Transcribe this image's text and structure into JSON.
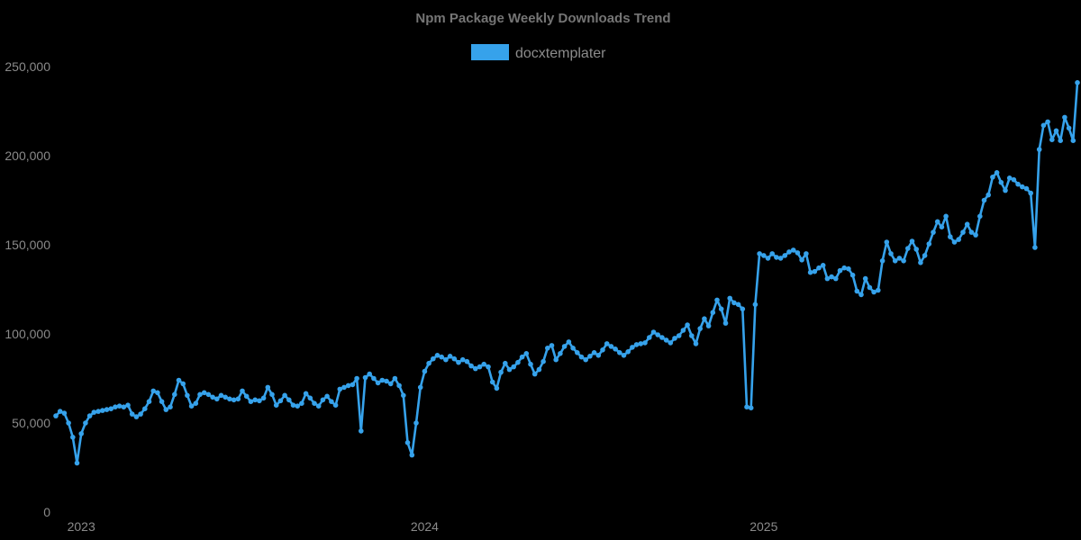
{
  "title": "Npm Package Weekly Downloads Trend",
  "legend": {
    "position": "top",
    "items": [
      {
        "label": "docxtemplater",
        "color": "#36a2eb"
      }
    ]
  },
  "colors": {
    "background": "#000000",
    "title_text": "#757575",
    "tick_text": "#8a8a8a",
    "legend_text": "#8c8c8c",
    "series_blue": "#36a2eb"
  },
  "chart_data": {
    "type": "line",
    "title": "Npm Package Weekly Downloads Trend",
    "xlabel": "",
    "ylabel": "",
    "ylim": [
      0,
      250000
    ],
    "grid": false,
    "legend_position": "top",
    "background": "#000000",
    "y_ticks": [
      {
        "label": "0",
        "value": 0
      },
      {
        "label": "50,000",
        "value": 50000
      },
      {
        "label": "100,000",
        "value": 100000
      },
      {
        "label": "150,000",
        "value": 150000
      },
      {
        "label": "200,000",
        "value": 200000
      },
      {
        "label": "250,000",
        "value": 250000
      }
    ],
    "x_ticks": [
      {
        "label": "2023",
        "index": 6
      },
      {
        "label": "2024",
        "index": 87
      },
      {
        "label": "2025",
        "index": 167
      }
    ],
    "series": [
      {
        "name": "docxtemplater",
        "color": "#36a2eb",
        "marker": "circle",
        "values": [
          54000,
          56500,
          55500,
          50000,
          42000,
          27500,
          44000,
          50000,
          54000,
          56000,
          56500,
          57000,
          57500,
          58000,
          59000,
          59500,
          59000,
          60000,
          55000,
          53500,
          55000,
          58000,
          62000,
          68000,
          67000,
          62000,
          57500,
          59000,
          66000,
          74000,
          72000,
          65500,
          59500,
          61000,
          66000,
          67000,
          66000,
          64500,
          63500,
          65500,
          64500,
          63500,
          63000,
          63500,
          68000,
          65000,
          62000,
          63000,
          62500,
          64000,
          70000,
          66000,
          60000,
          62500,
          65500,
          63000,
          60000,
          59500,
          61000,
          66500,
          64000,
          61000,
          59500,
          63000,
          65000,
          62000,
          60000,
          69000,
          70000,
          71000,
          71500,
          75000,
          45500,
          75500,
          77500,
          75000,
          72500,
          74000,
          73500,
          72000,
          75000,
          71000,
          65500,
          39000,
          32000,
          50000,
          70000,
          79000,
          83500,
          86000,
          88000,
          87000,
          85500,
          87500,
          86000,
          84000,
          85500,
          84500,
          82000,
          80500,
          81500,
          83000,
          81500,
          73000,
          69500,
          78500,
          83500,
          80000,
          81500,
          84000,
          87000,
          89000,
          83000,
          77500,
          80000,
          84500,
          92000,
          93500,
          85500,
          89000,
          93000,
          95500,
          92000,
          89500,
          87000,
          85500,
          87500,
          89500,
          88000,
          91000,
          94500,
          93000,
          91500,
          89500,
          88000,
          90000,
          92500,
          94000,
          94500,
          95000,
          98000,
          101000,
          99500,
          98000,
          96500,
          95000,
          97500,
          99000,
          102000,
          105000,
          99000,
          94500,
          103000,
          108500,
          104500,
          112000,
          119000,
          114000,
          106000,
          120000,
          117500,
          116500,
          114000,
          59000,
          58500,
          116500,
          145000,
          144000,
          142500,
          145000,
          143000,
          142500,
          144000,
          146000,
          147000,
          145500,
          141500,
          145000,
          134500,
          135000,
          137000,
          138500,
          131000,
          132000,
          131000,
          135500,
          137000,
          136500,
          133000,
          124000,
          122000,
          131000,
          126000,
          123500,
          124500,
          141000,
          151500,
          145000,
          141000,
          142500,
          141000,
          148000,
          152000,
          147500,
          140000,
          144000,
          150500,
          157000,
          163000,
          160000,
          166000,
          154500,
          151500,
          153000,
          157000,
          161500,
          157000,
          155500,
          166000,
          175000,
          178000,
          188000,
          190500,
          185000,
          180500,
          187500,
          186500,
          184000,
          182500,
          181500,
          179000,
          148500,
          203500,
          217000,
          219000,
          209000,
          214000,
          208500,
          221500,
          215500,
          208500,
          241000
        ]
      }
    ]
  }
}
